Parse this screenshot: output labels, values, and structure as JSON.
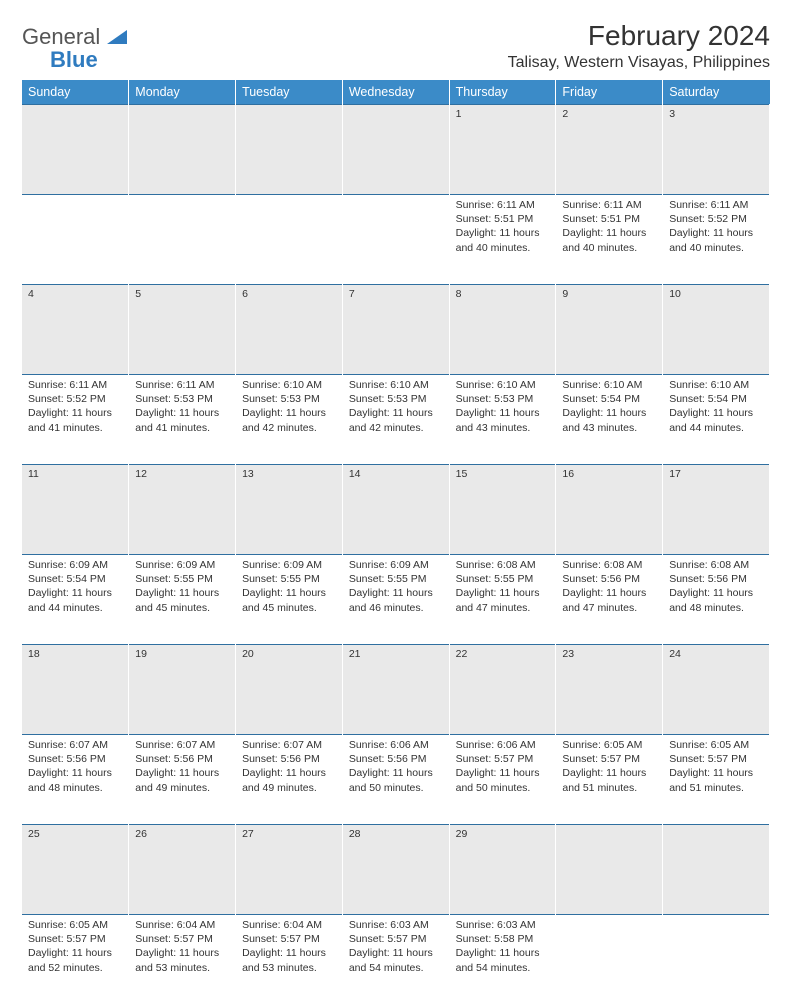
{
  "brand": {
    "part1": "General",
    "part2": "Blue"
  },
  "title": "February 2024",
  "location": "Talisay, Western Visayas, Philippines",
  "colors": {
    "header_bg": "#3b8bc8",
    "header_text": "#ffffff",
    "daynum_bg": "#e9e9e9",
    "row_border": "#2f6fa0",
    "text": "#333333",
    "brand_gray": "#555555",
    "brand_blue": "#2f7bbf"
  },
  "weekdays": [
    "Sunday",
    "Monday",
    "Tuesday",
    "Wednesday",
    "Thursday",
    "Friday",
    "Saturday"
  ],
  "weeks": [
    [
      null,
      null,
      null,
      null,
      {
        "n": "1",
        "sr": "6:11 AM",
        "ss": "5:51 PM",
        "dl1": "11 hours",
        "dl2": "and 40 minutes."
      },
      {
        "n": "2",
        "sr": "6:11 AM",
        "ss": "5:51 PM",
        "dl1": "11 hours",
        "dl2": "and 40 minutes."
      },
      {
        "n": "3",
        "sr": "6:11 AM",
        "ss": "5:52 PM",
        "dl1": "11 hours",
        "dl2": "and 40 minutes."
      }
    ],
    [
      {
        "n": "4",
        "sr": "6:11 AM",
        "ss": "5:52 PM",
        "dl1": "11 hours",
        "dl2": "and 41 minutes."
      },
      {
        "n": "5",
        "sr": "6:11 AM",
        "ss": "5:53 PM",
        "dl1": "11 hours",
        "dl2": "and 41 minutes."
      },
      {
        "n": "6",
        "sr": "6:10 AM",
        "ss": "5:53 PM",
        "dl1": "11 hours",
        "dl2": "and 42 minutes."
      },
      {
        "n": "7",
        "sr": "6:10 AM",
        "ss": "5:53 PM",
        "dl1": "11 hours",
        "dl2": "and 42 minutes."
      },
      {
        "n": "8",
        "sr": "6:10 AM",
        "ss": "5:53 PM",
        "dl1": "11 hours",
        "dl2": "and 43 minutes."
      },
      {
        "n": "9",
        "sr": "6:10 AM",
        "ss": "5:54 PM",
        "dl1": "11 hours",
        "dl2": "and 43 minutes."
      },
      {
        "n": "10",
        "sr": "6:10 AM",
        "ss": "5:54 PM",
        "dl1": "11 hours",
        "dl2": "and 44 minutes."
      }
    ],
    [
      {
        "n": "11",
        "sr": "6:09 AM",
        "ss": "5:54 PM",
        "dl1": "11 hours",
        "dl2": "and 44 minutes."
      },
      {
        "n": "12",
        "sr": "6:09 AM",
        "ss": "5:55 PM",
        "dl1": "11 hours",
        "dl2": "and 45 minutes."
      },
      {
        "n": "13",
        "sr": "6:09 AM",
        "ss": "5:55 PM",
        "dl1": "11 hours",
        "dl2": "and 45 minutes."
      },
      {
        "n": "14",
        "sr": "6:09 AM",
        "ss": "5:55 PM",
        "dl1": "11 hours",
        "dl2": "and 46 minutes."
      },
      {
        "n": "15",
        "sr": "6:08 AM",
        "ss": "5:55 PM",
        "dl1": "11 hours",
        "dl2": "and 47 minutes."
      },
      {
        "n": "16",
        "sr": "6:08 AM",
        "ss": "5:56 PM",
        "dl1": "11 hours",
        "dl2": "and 47 minutes."
      },
      {
        "n": "17",
        "sr": "6:08 AM",
        "ss": "5:56 PM",
        "dl1": "11 hours",
        "dl2": "and 48 minutes."
      }
    ],
    [
      {
        "n": "18",
        "sr": "6:07 AM",
        "ss": "5:56 PM",
        "dl1": "11 hours",
        "dl2": "and 48 minutes."
      },
      {
        "n": "19",
        "sr": "6:07 AM",
        "ss": "5:56 PM",
        "dl1": "11 hours",
        "dl2": "and 49 minutes."
      },
      {
        "n": "20",
        "sr": "6:07 AM",
        "ss": "5:56 PM",
        "dl1": "11 hours",
        "dl2": "and 49 minutes."
      },
      {
        "n": "21",
        "sr": "6:06 AM",
        "ss": "5:56 PM",
        "dl1": "11 hours",
        "dl2": "and 50 minutes."
      },
      {
        "n": "22",
        "sr": "6:06 AM",
        "ss": "5:57 PM",
        "dl1": "11 hours",
        "dl2": "and 50 minutes."
      },
      {
        "n": "23",
        "sr": "6:05 AM",
        "ss": "5:57 PM",
        "dl1": "11 hours",
        "dl2": "and 51 minutes."
      },
      {
        "n": "24",
        "sr": "6:05 AM",
        "ss": "5:57 PM",
        "dl1": "11 hours",
        "dl2": "and 51 minutes."
      }
    ],
    [
      {
        "n": "25",
        "sr": "6:05 AM",
        "ss": "5:57 PM",
        "dl1": "11 hours",
        "dl2": "and 52 minutes."
      },
      {
        "n": "26",
        "sr": "6:04 AM",
        "ss": "5:57 PM",
        "dl1": "11 hours",
        "dl2": "and 53 minutes."
      },
      {
        "n": "27",
        "sr": "6:04 AM",
        "ss": "5:57 PM",
        "dl1": "11 hours",
        "dl2": "and 53 minutes."
      },
      {
        "n": "28",
        "sr": "6:03 AM",
        "ss": "5:57 PM",
        "dl1": "11 hours",
        "dl2": "and 54 minutes."
      },
      {
        "n": "29",
        "sr": "6:03 AM",
        "ss": "5:58 PM",
        "dl1": "11 hours",
        "dl2": "and 54 minutes."
      },
      null,
      null
    ]
  ],
  "labels": {
    "sunrise": "Sunrise: ",
    "sunset": "Sunset: ",
    "daylight": "Daylight: "
  }
}
